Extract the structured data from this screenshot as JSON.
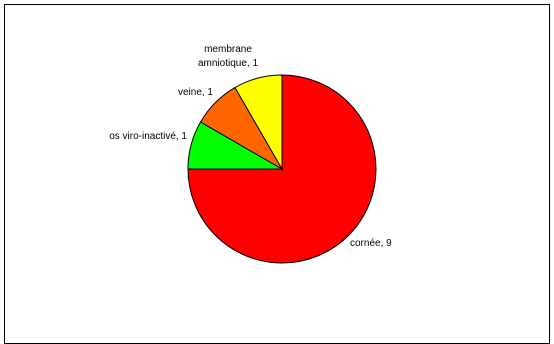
{
  "chart_data": {
    "type": "pie",
    "slices": [
      {
        "label": "cornée",
        "value": 9,
        "color": "#ff0000"
      },
      {
        "label": "os viro-inactivé",
        "value": 1,
        "color": "#00ff00"
      },
      {
        "label": "veine",
        "value": 1,
        "color": "#ff6600"
      },
      {
        "label": "membrane amniotique",
        "value": 1,
        "color": "#ffff00"
      }
    ],
    "labels": {
      "cornee": "cornée, 9",
      "os": "os viro-inactivé, 1",
      "veine": "veine, 1",
      "membrane_line1": "membrane",
      "membrane_line2": "amniotique, 1"
    },
    "slice_border_color": "#000000"
  }
}
